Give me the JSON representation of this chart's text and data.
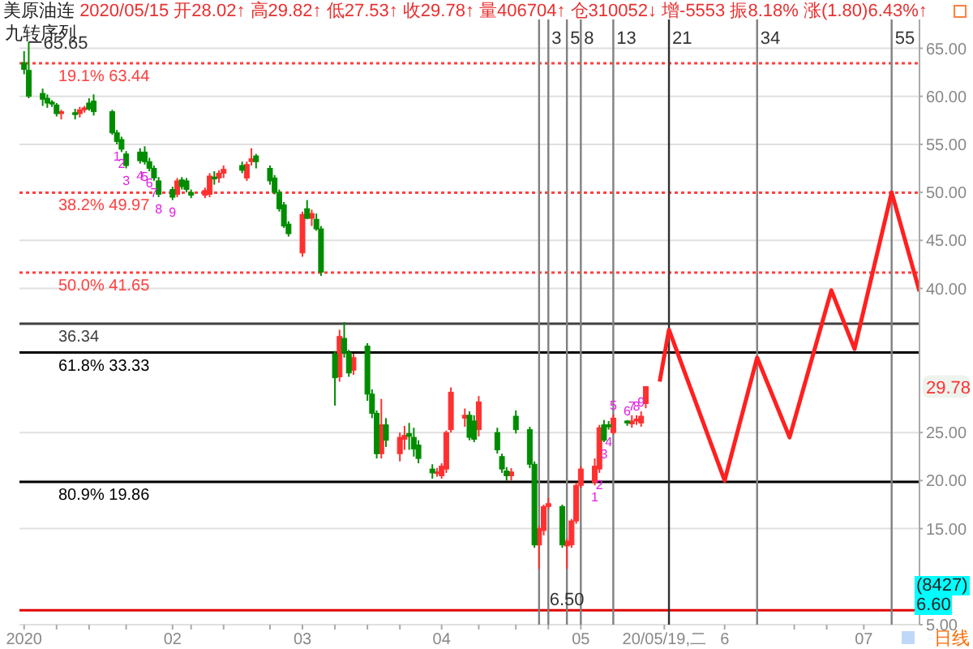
{
  "chart_data": {
    "type": "candlestick",
    "title": "美原油连",
    "subtitle": "2020/05/15 开28.02↑ 高29.82↑ 低27.53↑ 收29.78↑ 量406704↑ 仓310052↓ 增-5553 振8.18% 涨(1.80)6.43%↑",
    "xlim": [
      "2020-01-01",
      "2020-07-13"
    ],
    "xticks": [
      {
        "value": "2020-01-02",
        "label": "2020"
      },
      {
        "value": "2020-01-09",
        "label": null
      },
      {
        "value": "2020-01-16",
        "label": null
      },
      {
        "value": "2020-01-24",
        "label": null
      },
      {
        "value": "2020-02-03",
        "label": "02"
      },
      {
        "value": "2020-02-07",
        "label": null
      },
      {
        "value": "2020-02-14",
        "label": null
      },
      {
        "value": "2020-02-24",
        "label": null
      },
      {
        "value": "2020-03-02",
        "label": "03"
      },
      {
        "value": "2020-03-09",
        "label": null
      },
      {
        "value": "2020-03-16",
        "label": null
      },
      {
        "value": "2020-03-23",
        "label": null
      },
      {
        "value": "2020-04-01",
        "label": "04"
      },
      {
        "value": "2020-04-09",
        "label": null
      },
      {
        "value": "2020-04-17",
        "label": null
      },
      {
        "value": "2020-04-24",
        "label": null
      },
      {
        "value": "2020-05-01",
        "label": "05"
      },
      {
        "value": "2020-05-19",
        "label": "20/05/19,二"
      },
      {
        "value": "2020-06-01",
        "label": "6"
      },
      {
        "value": "2020-06-16",
        "label": null
      },
      {
        "value": "2020-06-23",
        "label": null
      },
      {
        "value": "2020-07-01",
        "label": "07"
      }
    ],
    "ylim": [
      5,
      68
    ],
    "yticks": [
      {
        "value": 5,
        "label": "5.00"
      },
      {
        "value": 15,
        "label": "15.00"
      },
      {
        "value": 20,
        "label": "20.00"
      },
      {
        "value": 25,
        "label": "25.00"
      },
      {
        "value": 40,
        "label": "40.00"
      },
      {
        "value": 45,
        "label": "45.00"
      },
      {
        "value": 50,
        "label": "50.00"
      },
      {
        "value": 55,
        "label": "55.00"
      },
      {
        "value": 60,
        "label": "60.00"
      },
      {
        "value": 65,
        "label": "65.00"
      }
    ],
    "grid": "y",
    "series": [
      {
        "color": "#ff3030",
        "x": [
          "2020-01-10",
          "2020-01-14",
          "2020-01-15",
          "2020-02-04",
          "2020-02-10",
          "2020-02-11",
          "2020-02-13",
          "2020-02-14",
          "2020-02-19",
          "2020-02-20",
          "2020-03-02",
          "2020-03-04",
          "2020-03-10",
          "2020-03-13",
          "2020-03-19",
          "2020-03-23",
          "2020-03-24",
          "2020-03-31",
          "2020-04-01",
          "2020-04-02",
          "2020-04-03",
          "2020-04-06",
          "2020-04-09",
          "2020-04-16",
          "2020-04-22",
          "2020-04-23",
          "2020-04-24",
          "2020-04-28",
          "2020-04-29",
          "2020-04-30",
          "2020-05-01",
          "2020-05-04",
          "2020-05-05",
          "2020-05-08",
          "2020-05-12",
          "2020-05-13",
          "2020-05-14",
          "2020-05-15"
        ],
        "ohlc": [
          [
            58.2,
            58.6,
            57.6,
            58.4
          ],
          [
            58.2,
            58.9,
            57.8,
            58.6
          ],
          [
            58.6,
            59.0,
            58.3,
            58.8
          ],
          [
            49.8,
            51.5,
            49.5,
            51.2
          ],
          [
            49.7,
            50.5,
            49.4,
            50.2
          ],
          [
            49.8,
            52.0,
            49.5,
            51.7
          ],
          [
            51.5,
            52.3,
            51.0,
            52.0
          ],
          [
            52.0,
            52.8,
            51.5,
            52.4
          ],
          [
            51.5,
            53.2,
            51.2,
            52.9
          ],
          [
            53.2,
            54.6,
            52.8,
            53.5
          ],
          [
            43.7,
            48.0,
            43.3,
            47.7
          ],
          [
            47.3,
            48.2,
            46.5,
            47.8
          ],
          [
            30.8,
            35.7,
            30.3,
            35.0
          ],
          [
            31.5,
            33.2,
            31.0,
            32.8
          ],
          [
            22.8,
            28.5,
            22.3,
            25.8
          ],
          [
            22.8,
            25.0,
            22.0,
            24.5
          ],
          [
            24.3,
            25.7,
            23.2,
            24.7
          ],
          [
            20.8,
            21.3,
            20.4,
            20.9
          ],
          [
            20.5,
            21.8,
            20.2,
            21.5
          ],
          [
            21.2,
            25.2,
            20.8,
            25.0
          ],
          [
            25.3,
            29.7,
            25.0,
            29.2
          ],
          [
            26.5,
            27.5,
            25.6,
            26.8
          ],
          [
            25.3,
            28.8,
            24.6,
            28.2
          ],
          [
            20.5,
            21.3,
            20.0,
            20.9
          ],
          [
            13.3,
            15.3,
            10.8,
            15.0
          ],
          [
            14.8,
            17.5,
            14.3,
            17.3
          ],
          [
            17.3,
            18.2,
            17.0,
            17.6
          ],
          [
            13.2,
            14.0,
            10.8,
            13.7
          ],
          [
            13.3,
            16.0,
            13.0,
            15.8
          ],
          [
            15.8,
            19.8,
            15.5,
            19.5
          ],
          [
            19.5,
            21.5,
            19.2,
            21.2
          ],
          [
            19.8,
            22.3,
            19.5,
            21.5
          ],
          [
            21.2,
            25.8,
            20.8,
            25.5
          ],
          [
            25.0,
            26.9,
            24.8,
            26.5
          ],
          [
            25.9,
            26.8,
            25.5,
            26.2
          ],
          [
            26.2,
            26.8,
            25.8,
            26.4
          ],
          [
            26.0,
            27.2,
            25.6,
            26.7
          ],
          [
            28.02,
            29.82,
            27.53,
            29.78
          ]
        ]
      },
      {
        "color": "#008c00",
        "x": [
          "2020-01-02",
          "2020-01-03",
          "2020-01-06",
          "2020-01-07",
          "2020-01-08",
          "2020-01-09",
          "2020-01-13",
          "2020-01-16",
          "2020-01-17",
          "2020-01-21",
          "2020-01-22",
          "2020-01-23",
          "2020-01-24",
          "2020-01-27",
          "2020-01-28",
          "2020-01-29",
          "2020-01-30",
          "2020-01-31",
          "2020-02-03",
          "2020-02-05",
          "2020-02-06",
          "2020-02-07",
          "2020-02-12",
          "2020-02-18",
          "2020-02-21",
          "2020-02-24",
          "2020-02-25",
          "2020-02-26",
          "2020-02-27",
          "2020-02-28",
          "2020-03-03",
          "2020-03-05",
          "2020-03-06",
          "2020-03-09",
          "2020-03-11",
          "2020-03-12",
          "2020-03-16",
          "2020-03-17",
          "2020-03-18",
          "2020-03-20",
          "2020-03-25",
          "2020-03-26",
          "2020-03-27",
          "2020-03-30",
          "2020-04-07",
          "2020-04-08",
          "2020-04-13",
          "2020-04-14",
          "2020-04-15",
          "2020-04-17",
          "2020-04-20",
          "2020-04-21",
          "2020-04-27",
          "2020-05-06",
          "2020-05-07",
          "2020-05-11"
        ],
        "ohlc": [
          [
            63.5,
            64.7,
            62.3,
            62.8
          ],
          [
            62.7,
            65.65,
            59.8,
            60.0
          ],
          [
            60.3,
            60.8,
            59.0,
            59.7
          ],
          [
            59.8,
            60.2,
            58.8,
            59.3
          ],
          [
            59.4,
            59.6,
            58.9,
            59.2
          ],
          [
            59.1,
            59.3,
            57.9,
            58.2
          ],
          [
            58.3,
            58.7,
            57.6,
            58.1
          ],
          [
            59.3,
            59.8,
            58.5,
            58.7
          ],
          [
            59.5,
            60.2,
            58.0,
            58.4
          ],
          [
            58.4,
            58.6,
            56.0,
            56.2
          ],
          [
            56.2,
            56.5,
            55.0,
            55.3
          ],
          [
            55.5,
            55.8,
            54.2,
            54.5
          ],
          [
            54.0,
            54.3,
            52.5,
            52.8
          ],
          [
            54.2,
            54.6,
            53.0,
            53.3
          ],
          [
            54.2,
            54.8,
            52.9,
            53.2
          ],
          [
            53.2,
            53.6,
            52.2,
            52.5
          ],
          [
            52.5,
            52.8,
            51.2,
            51.5
          ],
          [
            51.2,
            51.6,
            49.5,
            49.8
          ],
          [
            50.3,
            50.6,
            49.2,
            49.5
          ],
          [
            51.3,
            51.6,
            50.3,
            50.6
          ],
          [
            51.2,
            51.5,
            50.0,
            50.3
          ],
          [
            50.0,
            50.3,
            49.4,
            49.7
          ],
          [
            51.6,
            52.2,
            50.8,
            51.4
          ],
          [
            52.8,
            53.2,
            52.0,
            52.3
          ],
          [
            53.8,
            54.0,
            52.5,
            53.2
          ],
          [
            52.5,
            52.8,
            50.8,
            51.2
          ],
          [
            51.5,
            51.8,
            49.8,
            50.0
          ],
          [
            50.0,
            50.3,
            48.0,
            48.3
          ],
          [
            48.7,
            49.0,
            46.3,
            46.5
          ],
          [
            46.7,
            47.0,
            45.4,
            45.7
          ],
          [
            48.3,
            49.2,
            47.2,
            47.3
          ],
          [
            47.2,
            47.8,
            46.0,
            46.2
          ],
          [
            46.2,
            46.5,
            41.3,
            41.7
          ],
          [
            33.2,
            33.5,
            27.8,
            30.7
          ],
          [
            34.8,
            36.5,
            32.8,
            33.3
          ],
          [
            33.3,
            33.6,
            30.8,
            31.2
          ],
          [
            34.0,
            34.3,
            28.3,
            29.0
          ],
          [
            29.0,
            29.5,
            26.5,
            27.0
          ],
          [
            27.0,
            27.3,
            22.3,
            22.8
          ],
          [
            25.8,
            26.5,
            23.5,
            24.2
          ],
          [
            24.9,
            26.0,
            23.2,
            24.6
          ],
          [
            24.5,
            25.5,
            22.5,
            23.3
          ],
          [
            23.7,
            24.2,
            21.8,
            22.3
          ],
          [
            21.2,
            21.7,
            20.2,
            20.8
          ],
          [
            26.8,
            27.2,
            24.2,
            24.5
          ],
          [
            26.2,
            26.8,
            24.0,
            24.3
          ],
          [
            25.0,
            25.5,
            22.8,
            23.2
          ],
          [
            22.5,
            22.8,
            20.8,
            21.2
          ],
          [
            21.0,
            21.4,
            20.0,
            20.5
          ],
          [
            26.7,
            27.3,
            24.9,
            25.3
          ],
          [
            25.3,
            25.6,
            21.3,
            21.7
          ],
          [
            21.7,
            22.0,
            13.0,
            13.3
          ],
          [
            17.3,
            17.5,
            13.0,
            13.3
          ],
          [
            25.8,
            26.3,
            24.0,
            24.2
          ],
          [
            25.8,
            26.2,
            25.3,
            25.6
          ],
          [
            26.2,
            26.3,
            25.7,
            26.0
          ]
        ]
      },
      {
        "type": "line",
        "color": "#ff2020",
        "x": [
          "2020-05-18",
          "2020-05-20",
          "2020-06-01",
          "2020-06-08",
          "2020-06-15",
          "2020-06-24",
          "2020-06-29",
          "2020-07-07",
          "2020-07-13"
        ],
        "values": [
          30.3,
          35.7,
          20.0,
          32.8,
          24.5,
          39.8,
          33.7,
          50.0,
          39.7
        ]
      }
    ],
    "ref_lines": [
      {
        "axis": "y",
        "value": 63.44,
        "label": "19.1% 63.44",
        "color": "#ff4040",
        "line_style": "dotted"
      },
      {
        "axis": "y",
        "value": 49.97,
        "label": "38.2% 49.97",
        "color": "#ff4040",
        "line_style": "dotted"
      },
      {
        "axis": "y",
        "value": 41.65,
        "label": "50.0% 41.65",
        "color": "#ff4040",
        "line_style": "dotted"
      },
      {
        "axis": "y",
        "value": 36.34,
        "label": "36.34",
        "color": "#404040",
        "line_style": "solid"
      },
      {
        "axis": "y",
        "value": 33.33,
        "label": "61.8% 33.33",
        "color": "#000000",
        "line_style": "solid"
      },
      {
        "axis": "y",
        "value": 19.86,
        "label": "80.9% 19.86",
        "color": "#000000",
        "line_style": "solid"
      },
      {
        "axis": "y",
        "value": 6.5,
        "color": "#e00000",
        "line_style": "solid"
      },
      {
        "axis": "x",
        "value": "2020-04-22",
        "color": "#808080",
        "line_style": "solid"
      },
      {
        "axis": "x",
        "value": "2020-04-24",
        "color": "#808080",
        "line_style": "solid"
      },
      {
        "axis": "x",
        "value": "2020-04-28",
        "color": "#808080",
        "line_style": "solid"
      },
      {
        "axis": "x",
        "value": "2020-05-01",
        "color": "#808080",
        "line_style": "solid"
      },
      {
        "axis": "x",
        "value": "2020-05-08",
        "color": "#808080",
        "line_style": "solid"
      },
      {
        "axis": "x",
        "value": "2020-05-20",
        "color": "#303030",
        "line_style": "solid"
      },
      {
        "axis": "x",
        "value": "2020-06-08",
        "color": "#808080",
        "line_style": "solid"
      },
      {
        "axis": "x",
        "value": "2020-07-07",
        "color": "#808080",
        "line_style": "solid"
      }
    ],
    "annotations": [
      "九转序列",
      "(8427)",
      "6.60",
      "日线",
      {
        "text": "3",
        "x": "2020-04-24"
      },
      {
        "text": "5",
        "x": "2020-04-28"
      },
      {
        "text": "8",
        "x": "2020-05-01"
      },
      {
        "text": "13",
        "x": "2020-05-08"
      },
      {
        "text": "21",
        "x": "2020-05-20"
      },
      {
        "text": "34",
        "x": "2020-06-08"
      },
      {
        "text": "55",
        "x": "2020-07-07"
      },
      {
        "text": "65.65",
        "x": "2020-01-03",
        "y": 65.65
      },
      {
        "text": "6.50",
        "x": "2020-04-28",
        "y": 6.5
      },
      {
        "text": "29.78",
        "y": 29.78
      },
      {
        "text": "1",
        "x": "2020-01-22",
        "y": 55.0
      },
      {
        "text": "2",
        "x": "2020-01-23",
        "y": 54.2
      },
      {
        "text": "3",
        "x": "2020-01-24",
        "y": 52.5
      },
      {
        "text": "4",
        "x": "2020-01-27",
        "y": 53.0
      },
      {
        "text": "5",
        "x": "2020-01-28",
        "y": 52.9
      },
      {
        "text": "6",
        "x": "2020-01-29",
        "y": 52.2
      },
      {
        "text": "7",
        "x": "2020-01-30",
        "y": 51.2
      },
      {
        "text": "8",
        "x": "2020-01-31",
        "y": 49.5
      },
      {
        "text": "9",
        "x": "2020-02-03",
        "y": 49.2
      },
      {
        "text": "1",
        "x": "2020-05-04",
        "y": 19.5
      },
      {
        "text": "2",
        "x": "2020-05-05",
        "y": 20.8
      },
      {
        "text": "3",
        "x": "2020-05-06",
        "y": 24.0
      },
      {
        "text": "4",
        "x": "2020-05-07",
        "y": 25.3
      },
      {
        "text": "5",
        "x": "2020-05-08",
        "y": 26.9
      },
      {
        "text": "6",
        "x": "2020-05-11",
        "y": 26.3
      },
      {
        "text": "7",
        "x": "2020-05-12",
        "y": 26.8
      },
      {
        "text": "8",
        "x": "2020-05-13",
        "y": 26.8
      },
      {
        "text": "9",
        "x": "2020-05-14",
        "y": 27.2
      }
    ]
  }
}
